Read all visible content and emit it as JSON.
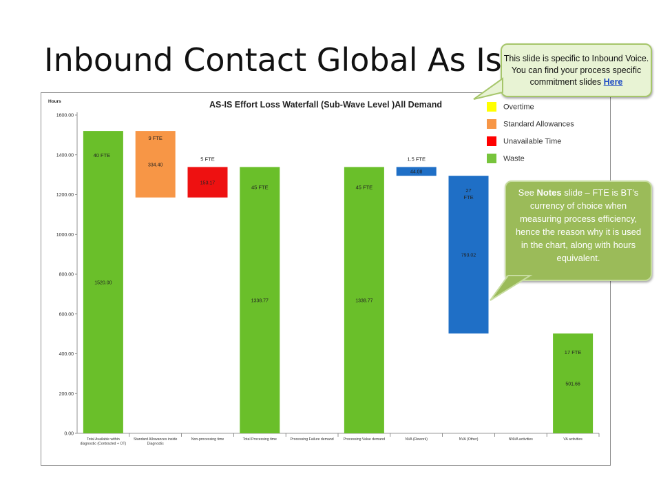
{
  "slide": {
    "title": "Inbound Contact Global As Is W"
  },
  "callout_top": {
    "text": "This slide is specific to Inbound Voice. You can find your process specific commitment slides",
    "link_label": "Here"
  },
  "callout_right": {
    "prefix": "See",
    "bold": "Notes",
    "text": "slide – FTE is BT’s currency of choice when measuring process efficiency, hence the reason why it is used in the chart, along with hours equivalent."
  },
  "chart_data": {
    "type": "bar",
    "subtype": "waterfall",
    "title": "AS-IS Effort Loss Waterfall (Sub-Wave Level )All Demand",
    "ylabel": "Hours",
    "ylim": [
      0,
      1600
    ],
    "yticks": [
      "0.00",
      "200.00",
      "400.00",
      "600.00",
      "800.00",
      "1000.00",
      "1200.00",
      "1400.00",
      "1600.00"
    ],
    "grid": false,
    "legend_position": "top-right",
    "legend": [
      {
        "label": "Overtime",
        "color": "#ffff00"
      },
      {
        "label": "Standard Allowances",
        "color": "#f79646"
      },
      {
        "label": "Unavailable Time",
        "color": "#ff0000"
      },
      {
        "label": "Waste",
        "color": "#77c43c"
      }
    ],
    "categories": [
      "Total Available within diagnostic (Contracted + OT)",
      "Standard Allowances inside Diagnostic",
      "Non-processing time",
      "Total Processing time",
      "Processing Failure demand",
      "Processing Value demand",
      "NVA (Rework)",
      "NVA (Other)",
      "NNVA activities",
      "VA activities"
    ],
    "bars": [
      {
        "base": 0,
        "value": 1520.0,
        "label": "1520.00",
        "fte": "40 FTE",
        "color": "#6abf2a"
      },
      {
        "base": 1185.6,
        "value": 334.4,
        "label": "334.40",
        "fte": "9 FTE",
        "color": "#f79646"
      },
      {
        "base": 1185.6,
        "value": 153.17,
        "label": "153.17",
        "fte": "5 FTE",
        "color": "#ee1111"
      },
      {
        "base": 0,
        "value": 1338.77,
        "label": "1338.77",
        "fte": "45 FTE",
        "color": "#6abf2a"
      },
      null,
      {
        "base": 0,
        "value": 1338.77,
        "label": "1338.77",
        "fte": "45 FTE",
        "color": "#6abf2a"
      },
      {
        "base": 1294.69,
        "value": 44.08,
        "label": "44.08",
        "fte": "1.5 FTE",
        "color": "#1f6fc6"
      },
      {
        "base": 501.67,
        "value": 793.02,
        "label": "793.02",
        "fte": "27 FTE",
        "color": "#1f6fc6"
      },
      null,
      {
        "base": 0,
        "value": 501.66,
        "label": "501.66",
        "fte": "17 FTE",
        "color": "#6abf2a"
      }
    ]
  }
}
